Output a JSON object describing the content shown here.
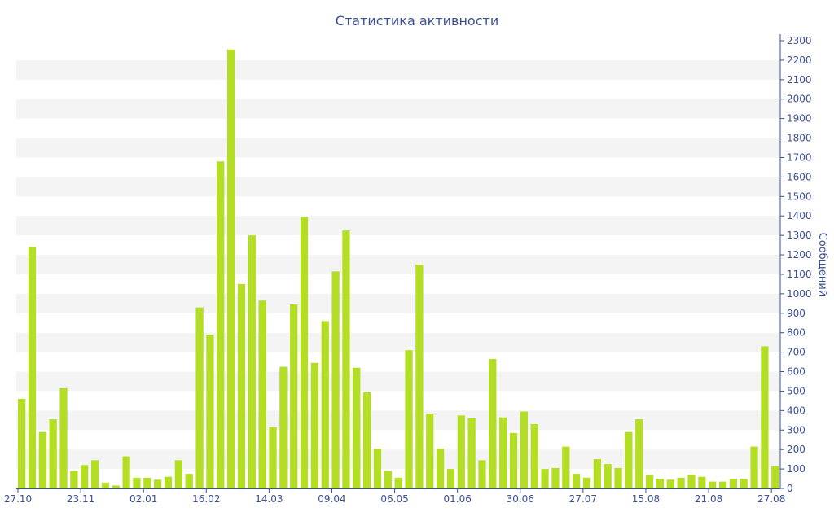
{
  "chart_data": {
    "type": "bar",
    "title": "Статистика активности",
    "xlabel": "",
    "ylabel": "Сообщений",
    "ylim": [
      0,
      2300
    ],
    "y_ticks": [
      0,
      100,
      200,
      300,
      400,
      500,
      600,
      700,
      800,
      900,
      1000,
      1100,
      1200,
      1300,
      1400,
      1500,
      1600,
      1700,
      1800,
      1900,
      2000,
      2100,
      2200,
      2300
    ],
    "y_axis_side": "right",
    "grid": "alternating horizontal bands",
    "x_tick_labels": [
      {
        "label": "27.10",
        "index": 0
      },
      {
        "label": "23.11",
        "index": 6
      },
      {
        "label": "02.01",
        "index": 12
      },
      {
        "label": "16.02",
        "index": 18
      },
      {
        "label": "14.03",
        "index": 24
      },
      {
        "label": "09.04",
        "index": 30
      },
      {
        "label": "06.05",
        "index": 36
      },
      {
        "label": "01.06",
        "index": 42
      },
      {
        "label": "30.06",
        "index": 48
      },
      {
        "label": "27.07",
        "index": 54
      },
      {
        "label": "15.08",
        "index": 60
      },
      {
        "label": "21.08",
        "index": 66
      },
      {
        "label": "27.08",
        "index": 72
      }
    ],
    "values": [
      460,
      1240,
      290,
      355,
      515,
      90,
      120,
      145,
      30,
      15,
      165,
      55,
      55,
      45,
      60,
      145,
      75,
      930,
      790,
      1680,
      2255,
      1050,
      1300,
      965,
      315,
      625,
      945,
      1395,
      645,
      860,
      1115,
      1325,
      620,
      495,
      205,
      90,
      55,
      710,
      1150,
      385,
      205,
      100,
      375,
      360,
      145,
      665,
      365,
      285,
      395,
      330,
      100,
      105,
      215,
      75,
      55,
      150,
      125,
      105,
      290,
      355,
      70,
      50,
      45,
      55,
      70,
      60,
      35,
      35,
      50,
      50,
      215,
      730,
      115
    ]
  },
  "colors": {
    "bar": "#b3de24",
    "text": "#3a4f94",
    "band": "#f4f4f4",
    "axis": "#3a4f94"
  }
}
